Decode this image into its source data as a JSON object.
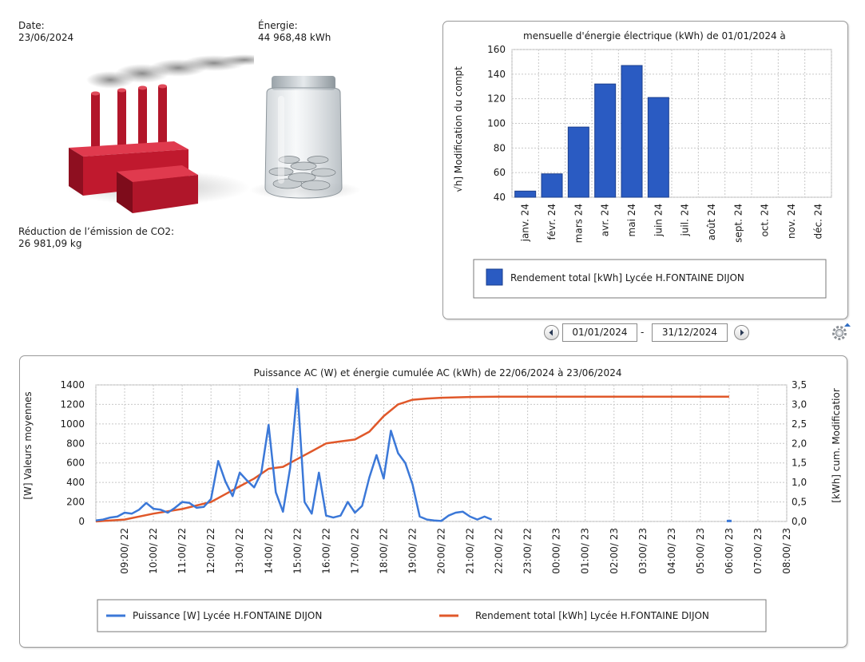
{
  "stats": {
    "date_label": "Date:",
    "date_value": "23/06/2024",
    "energy_label": "Énergie:",
    "energy_value": "44 968,48 kWh",
    "co2_label": "Réduction de l’émission de CO2:",
    "co2_value": "26 981,09 kg"
  },
  "colors": {
    "factory": "#c0192e",
    "bar": "#2a5bc2",
    "power_line": "#3b78d8",
    "energy_line": "#e0582a"
  },
  "monthly": {
    "title": "mensuelle d'énergie électrique (kWh) de 01/01/2024 à",
    "ylabel": "√h] Modification du compt",
    "legend": "Rendement total [kWh] Lycée H.FONTAINE DIJON"
  },
  "date_range": {
    "start": "01/01/2024",
    "separator": "-",
    "end": "31/12/2024"
  },
  "daily": {
    "title": "Puissance AC (W) et énergie cumulée AC (kWh) de 22/06/2024 à 23/06/2024",
    "ylabel_left": "[W] Valeurs moyennes",
    "ylabel_right": "[kWh] cum. Modificatior",
    "legend_power": "Puissance [W] Lycée H.FONTAINE DIJON",
    "legend_energy": "Rendement total [kWh] Lycée H.FONTAINE DIJON"
  },
  "chart_data": [
    {
      "type": "bar",
      "title": "mensuelle d'énergie électrique (kWh) de 01/01/2024 à",
      "ylabel": "√h] Modification du compt",
      "xlabel": "",
      "ylim": [
        40,
        160
      ],
      "yticks": [
        "40",
        "60",
        "80",
        "100",
        "120",
        "140",
        "160"
      ],
      "categories": [
        "janv. 24",
        "févr. 24",
        "mars 24",
        "avr. 24",
        "mai 24",
        "juin 24",
        "juil. 24",
        "août 24",
        "sept. 24",
        "oct. 24",
        "nov. 24",
        "déc. 24"
      ],
      "series": [
        {
          "name": "Rendement total [kWh] Lycée H.FONTAINE DIJON",
          "values": [
            45,
            59,
            97,
            132,
            147,
            121,
            null,
            null,
            null,
            null,
            null,
            null
          ]
        }
      ],
      "grid": true,
      "legend": "bottom"
    },
    {
      "type": "line",
      "title": "Puissance AC (W) et énergie cumulée AC (kWh) de 22/06/2024 à 23/06/2024",
      "ylabel_left": "[W] Valeurs moyennes",
      "ylabel_right": "[kWh] cum. Modificatior",
      "ylim_left": [
        0,
        1400
      ],
      "ylim_right": [
        0,
        3.5
      ],
      "yticks_left": [
        "0",
        "200",
        "400",
        "600",
        "800",
        "1000",
        "1200",
        "1400"
      ],
      "yticks_right": [
        "0,0",
        "0,5",
        "1,0",
        "1,5",
        "2,0",
        "2,5",
        "3,0",
        "3,5"
      ],
      "xlim": [
        "22/06 08:00",
        "23/06 08:00"
      ],
      "xticks": [
        "09:00/ 22",
        "10:00/ 22",
        "11:00/ 22",
        "12:00/ 22",
        "13:00/ 22",
        "14:00/ 22",
        "15:00/ 22",
        "16:00/ 22",
        "17:00/ 22",
        "18:00/ 22",
        "19:00/ 22",
        "20:00/ 22",
        "21:00/ 22",
        "22:00/ 22",
        "23:00/ 22",
        "00:00/ 23",
        "01:00/ 23",
        "02:00/ 23",
        "03:00/ 23",
        "04:00/ 23",
        "05:00/ 23",
        "06:00/ 23",
        "07:00/ 23",
        "08:00/ 23"
      ],
      "grid": true,
      "legend": "bottom",
      "series": [
        {
          "name": "Puissance [W] Lycée H.FONTAINE DIJON",
          "axis": "left",
          "x": [
            "08:00",
            "08:15",
            "08:30",
            "08:45",
            "09:00",
            "09:15",
            "09:30",
            "09:45",
            "10:00",
            "10:15",
            "10:30",
            "10:45",
            "11:00",
            "11:15",
            "11:30",
            "11:45",
            "12:00",
            "12:15",
            "12:30",
            "12:45",
            "13:00",
            "13:15",
            "13:30",
            "13:45",
            "14:00",
            "14:15",
            "14:30",
            "14:45",
            "15:00",
            "15:15",
            "15:30",
            "15:45",
            "16:00",
            "16:15",
            "16:30",
            "16:45",
            "17:00",
            "17:15",
            "17:30",
            "17:45",
            "18:00",
            "18:15",
            "18:30",
            "18:45",
            "19:00",
            "19:15",
            "19:30",
            "19:45",
            "20:00",
            "20:15",
            "20:30",
            "20:45",
            "21:00",
            "21:15",
            "21:30",
            "21:45"
          ],
          "y": [
            10,
            20,
            40,
            50,
            90,
            80,
            120,
            190,
            130,
            120,
            90,
            140,
            200,
            190,
            140,
            150,
            230,
            620,
            410,
            260,
            500,
            420,
            350,
            500,
            990,
            300,
            100,
            550,
            1360,
            200,
            80,
            500,
            60,
            40,
            60,
            200,
            90,
            160,
            450,
            680,
            440,
            930,
            700,
            600,
            380,
            50,
            20,
            10,
            5,
            60,
            90,
            100,
            50,
            20,
            50,
            20
          ]
        },
        {
          "name": "Rendement total [kWh] Lycée H.FONTAINE DIJON",
          "axis": "right",
          "x": [
            "08:00",
            "09:00",
            "10:00",
            "11:00",
            "12:00",
            "12:30",
            "13:00",
            "13:30",
            "14:00",
            "14:30",
            "15:00",
            "15:30",
            "16:00",
            "16:30",
            "17:00",
            "17:30",
            "18:00",
            "18:30",
            "19:00",
            "19:30",
            "20:00",
            "20:30",
            "21:00",
            "22:00",
            "23:00",
            "00:00",
            "03:00",
            "06:00"
          ],
          "y": [
            0.0,
            0.05,
            0.2,
            0.32,
            0.5,
            0.7,
            0.9,
            1.1,
            1.35,
            1.4,
            1.6,
            1.8,
            2.0,
            2.05,
            2.1,
            2.3,
            2.7,
            3.0,
            3.12,
            3.15,
            3.17,
            3.18,
            3.19,
            3.2,
            3.2,
            3.2,
            3.2,
            3.2
          ]
        }
      ]
    }
  ]
}
